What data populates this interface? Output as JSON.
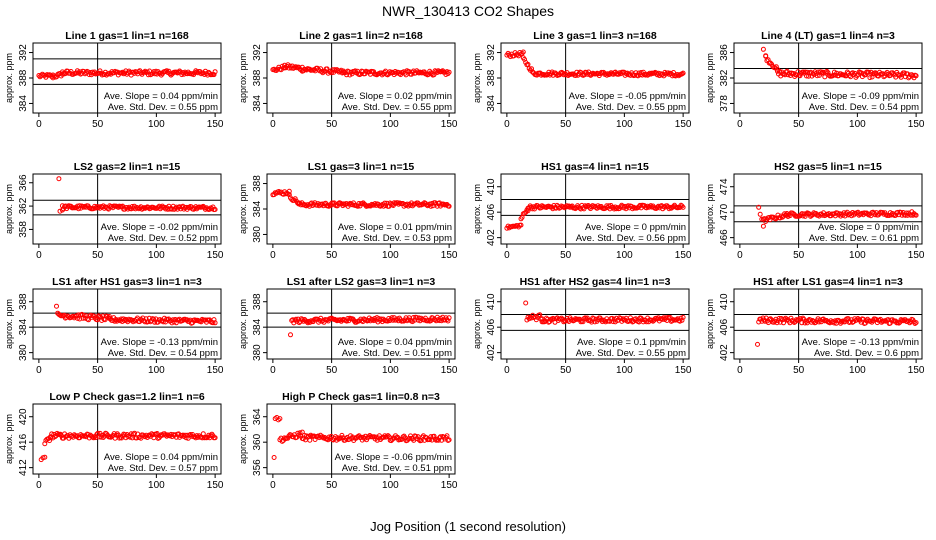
{
  "figure": {
    "title": "NWR_130413  CO2 Shapes",
    "xlabel": "Jog Position (1 second resolution)"
  },
  "chart_data": [
    {
      "type": "scatter",
      "title": "Line 1 gas=1 lin=1 n=168",
      "ylabel": "approx. ppm",
      "xlim": [
        -5,
        155
      ],
      "ylim": [
        382.5,
        393.5
      ],
      "xticks": [
        0,
        50,
        100,
        150
      ],
      "yticks": [
        384,
        388,
        392
      ],
      "hlines": [
        391,
        387
      ],
      "vline": 50,
      "annotations": [
        "Ave. Slope = 0.04  ppm/min",
        "Ave. Std. Dev. = 0.55  ppm"
      ],
      "segments": [
        {
          "x0": 0,
          "x1": 12,
          "y0": 388.3,
          "y1": 388.3,
          "noise": 0.3
        },
        {
          "x0": 12,
          "x1": 20,
          "y0": 388.2,
          "y1": 388.6,
          "noise": 0.3
        },
        {
          "x0": 20,
          "x1": 150,
          "y0": 388.8,
          "y1": 388.8,
          "noise": 0.35
        }
      ]
    },
    {
      "type": "scatter",
      "title": "Line 2 gas=1 lin=2 n=168",
      "ylabel": "approx. ppm",
      "xlim": [
        -5,
        155
      ],
      "ylim": [
        382.5,
        393.5
      ],
      "xticks": [
        0,
        50,
        100,
        150
      ],
      "yticks": [
        384,
        388,
        392
      ],
      "hlines": [],
      "vline": 50,
      "annotations": [
        "Ave. Slope = 0.02  ppm/min",
        "Ave. Std. Dev. = 0.55  ppm"
      ],
      "segments": [
        {
          "x0": 0,
          "x1": 10,
          "y0": 389.2,
          "y1": 389.7,
          "noise": 0.3
        },
        {
          "x0": 10,
          "x1": 25,
          "y0": 389.8,
          "y1": 389.5,
          "noise": 0.35
        },
        {
          "x0": 25,
          "x1": 60,
          "y0": 389.4,
          "y1": 388.9,
          "noise": 0.35
        },
        {
          "x0": 60,
          "x1": 150,
          "y0": 388.8,
          "y1": 388.8,
          "noise": 0.35
        }
      ]
    },
    {
      "type": "scatter",
      "title": "Line 3 gas=1 lin=3 n=168",
      "ylabel": "approx. ppm",
      "xlim": [
        -5,
        155
      ],
      "ylim": [
        382.5,
        393.5
      ],
      "xticks": [
        0,
        50,
        100,
        150
      ],
      "yticks": [
        384,
        388,
        392
      ],
      "hlines": [],
      "vline": 50,
      "annotations": [
        "Ave. Slope = -0.05  ppm/min",
        "Ave. Std. Dev. = 0.55  ppm"
      ],
      "segments": [
        {
          "x0": 0,
          "x1": 14,
          "y0": 391.6,
          "y1": 391.8,
          "noise": 0.3
        },
        {
          "x0": 14,
          "x1": 22,
          "y0": 391.0,
          "y1": 389.0,
          "noise": 0.3
        },
        {
          "x0": 22,
          "x1": 150,
          "y0": 388.7,
          "y1": 388.6,
          "noise": 0.3
        }
      ]
    },
    {
      "type": "scatter",
      "title": "Line 4 (LT) gas=1 lin=4 n=3",
      "ylabel": "approx. ppm",
      "xlim": [
        -5,
        155
      ],
      "ylim": [
        376.5,
        387.5
      ],
      "xticks": [
        0,
        50,
        100,
        150
      ],
      "yticks": [
        378,
        382,
        386
      ],
      "hlines": [
        383.5,
        381.2
      ],
      "vline": 50,
      "annotations": [
        "Ave. Slope = -0.09  ppm/min",
        "Ave. Std. Dev. = 0.54  ppm"
      ],
      "segments": [
        {
          "x0": 20,
          "x1": 22,
          "y0": 386.5,
          "y1": 385.7,
          "noise": 0.2
        },
        {
          "x0": 22,
          "x1": 32,
          "y0": 385.2,
          "y1": 383.3,
          "noise": 0.3
        },
        {
          "x0": 32,
          "x1": 150,
          "y0": 382.7,
          "y1": 382.4,
          "noise": 0.45
        }
      ]
    },
    {
      "type": "scatter",
      "title": "LS2 gas=2 lin=1 n=15",
      "ylabel": "approx. ppm",
      "xlim": [
        -5,
        155
      ],
      "ylim": [
        355.5,
        367.5
      ],
      "xticks": [
        0,
        50,
        100,
        150
      ],
      "yticks": [
        358,
        362,
        366
      ],
      "hlines": [
        363,
        360.5
      ],
      "vline": 50,
      "annotations": [
        "Ave. Slope = -0.02  ppm/min",
        "Ave. Std. Dev. = 0.52  ppm"
      ],
      "segments": [
        {
          "x0": 17,
          "x1": 18,
          "y0": 366.7,
          "y1": 366.7,
          "noise": 0
        },
        {
          "x0": 18,
          "x1": 20,
          "y0": 361.3,
          "y1": 361.3,
          "noise": 0.3
        },
        {
          "x0": 20,
          "x1": 150,
          "y0": 361.8,
          "y1": 361.7,
          "noise": 0.3
        }
      ]
    },
    {
      "type": "scatter",
      "title": "LS1 gas=3 lin=1 n=15",
      "ylabel": "approx. ppm",
      "xlim": [
        -5,
        155
      ],
      "ylim": [
        378.5,
        389.5
      ],
      "xticks": [
        0,
        50,
        100,
        150
      ],
      "yticks": [
        380,
        384,
        388
      ],
      "hlines": [],
      "vline": 50,
      "annotations": [
        "Ave. Slope = 0.01  ppm/min",
        "Ave. Std. Dev. = 0.53  ppm"
      ],
      "segments": [
        {
          "x0": 0,
          "x1": 14,
          "y0": 386.5,
          "y1": 386.6,
          "noise": 0.3
        },
        {
          "x0": 14,
          "x1": 22,
          "y0": 386.0,
          "y1": 385.0,
          "noise": 0.3
        },
        {
          "x0": 22,
          "x1": 150,
          "y0": 384.7,
          "y1": 384.7,
          "noise": 0.3
        }
      ]
    },
    {
      "type": "scatter",
      "title": "HS1 gas=4 lin=1 n=15",
      "ylabel": "approx. ppm",
      "xlim": [
        -5,
        155
      ],
      "ylim": [
        401,
        412
      ],
      "xticks": [
        0,
        50,
        100,
        150
      ],
      "yticks": [
        402,
        406,
        410
      ],
      "hlines": [
        408,
        405.5
      ],
      "vline": 50,
      "annotations": [
        "Ave. Slope = 0  ppm/min",
        "Ave. Std. Dev. = 0.56  ppm"
      ],
      "segments": [
        {
          "x0": 0,
          "x1": 12,
          "y0": 403.6,
          "y1": 403.9,
          "noise": 0.2
        },
        {
          "x0": 12,
          "x1": 18,
          "y0": 405.0,
          "y1": 406.5,
          "noise": 0.3
        },
        {
          "x0": 18,
          "x1": 150,
          "y0": 406.8,
          "y1": 406.8,
          "noise": 0.3
        }
      ]
    },
    {
      "type": "scatter",
      "title": "HS2 gas=5 lin=1 n=15",
      "ylabel": "approx. ppm",
      "xlim": [
        -5,
        155
      ],
      "ylim": [
        465,
        476
      ],
      "xticks": [
        0,
        50,
        100,
        150
      ],
      "yticks": [
        466,
        470,
        474
      ],
      "hlines": [
        471,
        468.5
      ],
      "vline": 50,
      "annotations": [
        "Ave. Slope = 0  ppm/min",
        "Ave. Std. Dev. = 0.61  ppm"
      ],
      "segments": [
        {
          "x0": 16,
          "x1": 20,
          "y0": 470.8,
          "y1": 468.0,
          "noise": 0.3
        },
        {
          "x0": 20,
          "x1": 40,
          "y0": 468.7,
          "y1": 469.6,
          "noise": 0.3
        },
        {
          "x0": 40,
          "x1": 150,
          "y0": 469.6,
          "y1": 469.8,
          "noise": 0.3
        }
      ]
    },
    {
      "type": "scatter",
      "title": "LS1 after HS1 gas=3 lin=1 n=3",
      "ylabel": "approx. ppm",
      "xlim": [
        -5,
        155
      ],
      "ylim": [
        379,
        390
      ],
      "xticks": [
        0,
        50,
        100,
        150
      ],
      "yticks": [
        380,
        384,
        388
      ],
      "hlines": [
        386.2,
        384
      ],
      "vline": 50,
      "annotations": [
        "Ave. Slope = -0.13  ppm/min",
        "Ave. Std. Dev. = 0.54  ppm"
      ],
      "segments": [
        {
          "x0": 15,
          "x1": 16,
          "y0": 387.3,
          "y1": 387.3,
          "noise": 0
        },
        {
          "x0": 16,
          "x1": 60,
          "y0": 385.9,
          "y1": 385.3,
          "noise": 0.4
        },
        {
          "x0": 60,
          "x1": 150,
          "y0": 385.2,
          "y1": 384.9,
          "noise": 0.35
        }
      ]
    },
    {
      "type": "scatter",
      "title": "LS1 after LS2 gas=3 lin=1 n=3",
      "ylabel": "approx. ppm",
      "xlim": [
        -5,
        155
      ],
      "ylim": [
        379,
        390
      ],
      "xticks": [
        0,
        50,
        100,
        150
      ],
      "yticks": [
        380,
        384,
        388
      ],
      "hlines": [
        386.2,
        384
      ],
      "vline": 50,
      "annotations": [
        "Ave. Slope = 0.04  ppm/min",
        "Ave. Std. Dev. = 0.51  ppm"
      ],
      "segments": [
        {
          "x0": 15,
          "x1": 16,
          "y0": 382.8,
          "y1": 382.8,
          "noise": 0
        },
        {
          "x0": 16,
          "x1": 150,
          "y0": 385.0,
          "y1": 385.3,
          "noise": 0.35
        }
      ]
    },
    {
      "type": "scatter",
      "title": "HS1 after HS2 gas=4 lin=1 n=3",
      "ylabel": "approx. ppm",
      "xlim": [
        -5,
        155
      ],
      "ylim": [
        401,
        412
      ],
      "xticks": [
        0,
        50,
        100,
        150
      ],
      "yticks": [
        402,
        406,
        410
      ],
      "hlines": [
        408,
        405.5
      ],
      "vline": 50,
      "annotations": [
        "Ave. Slope = 0.1  ppm/min",
        "Ave. Std. Dev. = 0.55  ppm"
      ],
      "segments": [
        {
          "x0": 16,
          "x1": 17,
          "y0": 409.8,
          "y1": 409.8,
          "noise": 0
        },
        {
          "x0": 17,
          "x1": 30,
          "y0": 407.5,
          "y1": 407.6,
          "noise": 0.4
        },
        {
          "x0": 30,
          "x1": 150,
          "y0": 407.1,
          "y1": 407.2,
          "noise": 0.35
        }
      ]
    },
    {
      "type": "scatter",
      "title": "HS1 after LS1 gas=4 lin=1 n=3",
      "ylabel": "approx. ppm",
      "xlim": [
        -5,
        155
      ],
      "ylim": [
        401,
        412
      ],
      "xticks": [
        0,
        50,
        100,
        150
      ],
      "yticks": [
        402,
        406,
        410
      ],
      "hlines": [
        408,
        405.5
      ],
      "vline": 50,
      "annotations": [
        "Ave. Slope = -0.13  ppm/min",
        "Ave. Std. Dev. = 0.6  ppm"
      ],
      "segments": [
        {
          "x0": 15,
          "x1": 16,
          "y0": 403.3,
          "y1": 403.3,
          "noise": 0
        },
        {
          "x0": 16,
          "x1": 150,
          "y0": 407.1,
          "y1": 406.9,
          "noise": 0.4
        }
      ]
    },
    {
      "type": "scatter",
      "title": "Low P Check gas=1.2 lin=1 n=6",
      "ylabel": "approx. ppm",
      "xlim": [
        -5,
        155
      ],
      "ylim": [
        411,
        422
      ],
      "xticks": [
        0,
        50,
        100,
        150
      ],
      "yticks": [
        412,
        416,
        420
      ],
      "hlines": [],
      "vline": 50,
      "annotations": [
        "Ave. Slope = 0.04  ppm/min",
        "Ave. Std. Dev. = 0.57  ppm"
      ],
      "segments": [
        {
          "x0": 2,
          "x1": 5,
          "y0": 413.3,
          "y1": 413.5,
          "noise": 0.2
        },
        {
          "x0": 5,
          "x1": 10,
          "y0": 415.9,
          "y1": 416.7,
          "noise": 0.3
        },
        {
          "x0": 10,
          "x1": 150,
          "y0": 417.0,
          "y1": 417.0,
          "noise": 0.4
        }
      ]
    },
    {
      "type": "scatter",
      "title": "High P Check gas=1 lin=0.8 n=3",
      "ylabel": "approx. ppm",
      "xlim": [
        -5,
        155
      ],
      "ylim": [
        355,
        366
      ],
      "xticks": [
        0,
        50,
        100,
        150
      ],
      "yticks": [
        356,
        360,
        364
      ],
      "hlines": [],
      "vline": 50,
      "annotations": [
        "Ave. Slope = -0.06  ppm/min",
        "Ave. Std. Dev. = 0.51  ppm"
      ],
      "segments": [
        {
          "x0": 1,
          "x1": 2,
          "y0": 357.6,
          "y1": 357.6,
          "noise": 0
        },
        {
          "x0": 2,
          "x1": 6,
          "y0": 363.8,
          "y1": 363.6,
          "noise": 0.2
        },
        {
          "x0": 6,
          "x1": 25,
          "y0": 360.4,
          "y1": 361.3,
          "noise": 0.4
        },
        {
          "x0": 25,
          "x1": 150,
          "y0": 360.7,
          "y1": 360.6,
          "noise": 0.4
        }
      ]
    }
  ]
}
